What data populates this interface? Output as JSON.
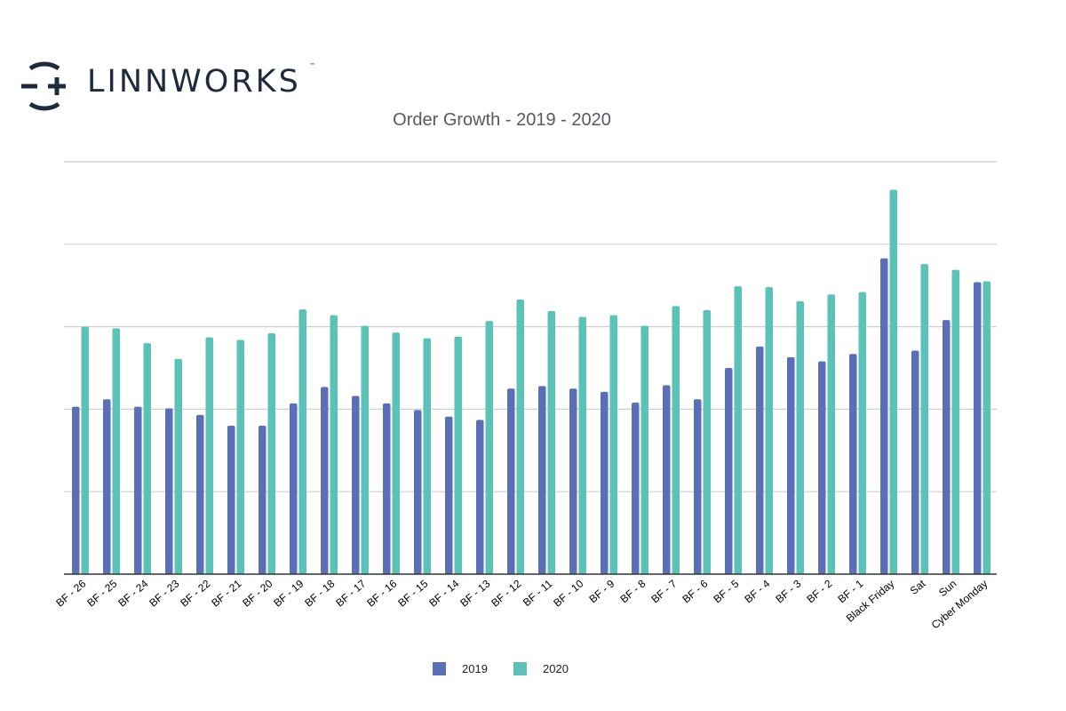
{
  "brand": {
    "name": "LINNWORKS",
    "tm": "™",
    "logo_icon": "linnworks-logo-mark",
    "color": "#1f2b3c"
  },
  "chart_data": {
    "type": "bar",
    "title": "Order Growth - 2019 - 2020",
    "xlabel": "",
    "ylabel": "",
    "y_tick_labels_shown": false,
    "grid": true,
    "legend": "bottom-center",
    "ylim": [
      0,
      5
    ],
    "categories": [
      "BF - 26",
      "BF - 25",
      "BF - 24",
      "BF - 23",
      "BF - 22",
      "BF - 21",
      "BF - 20",
      "BF - 19",
      "BF - 18",
      "BF - 17",
      "BF - 16",
      "BF - 15",
      "BF - 14",
      "BF - 13",
      "BF - 12",
      "BF - 11",
      "BF - 10",
      "BF - 9",
      "BF - 8",
      "BF - 7",
      "BF - 6",
      "BF - 5",
      "BF - 4",
      "BF - 3",
      "BF - 2",
      "BF - 1",
      "Black Friday",
      "Sat",
      "Sun",
      "Cyber Monday"
    ],
    "series": [
      {
        "name": "2019",
        "color": "#5b6fb7",
        "values": [
          2.03,
          2.12,
          2.03,
          2.01,
          1.93,
          1.8,
          1.8,
          2.07,
          2.27,
          2.16,
          2.07,
          1.99,
          1.91,
          1.87,
          2.25,
          2.28,
          2.25,
          2.21,
          2.08,
          2.29,
          2.12,
          2.5,
          2.76,
          2.63,
          2.58,
          2.67,
          3.83,
          2.71,
          3.08,
          3.54
        ]
      },
      {
        "name": "2020",
        "color": "#5bc2b8",
        "values": [
          3.0,
          2.98,
          2.8,
          2.61,
          2.87,
          2.84,
          2.92,
          3.21,
          3.14,
          3.01,
          2.93,
          2.86,
          2.88,
          3.07,
          3.33,
          3.19,
          3.12,
          3.14,
          3.01,
          3.25,
          3.2,
          3.49,
          3.48,
          3.31,
          3.39,
          3.42,
          4.66,
          3.76,
          3.69,
          3.55
        ]
      }
    ]
  }
}
